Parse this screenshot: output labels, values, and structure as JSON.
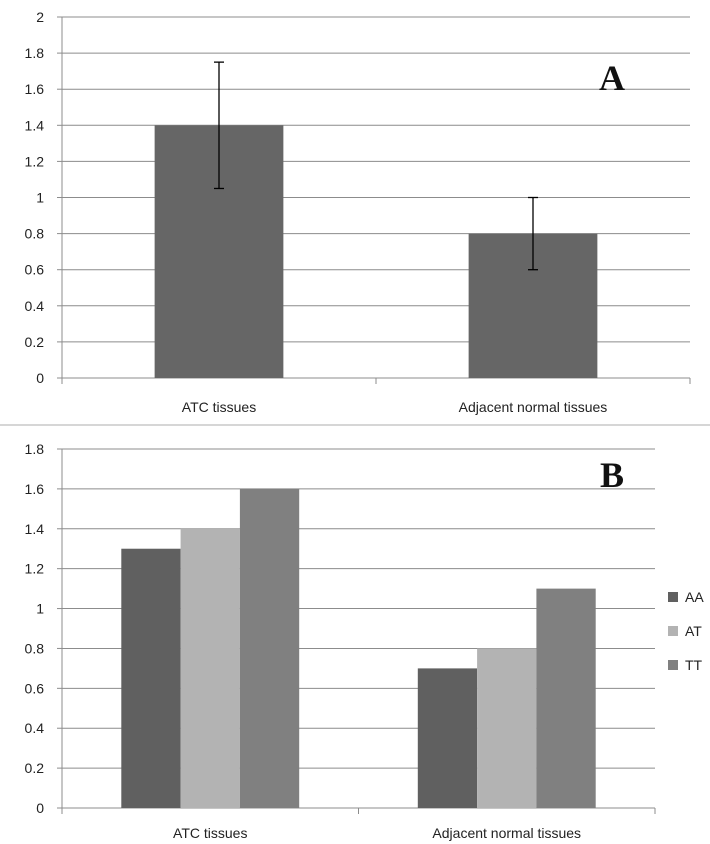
{
  "chart_data": [
    {
      "type": "bar",
      "panel_label": "A",
      "categories": [
        "ATC tissues",
        "Adjacent normal tissues"
      ],
      "values": [
        1.4,
        0.8
      ],
      "error_low": [
        1.05,
        0.6
      ],
      "error_high": [
        1.75,
        1.0
      ],
      "ylim": [
        0,
        2
      ],
      "ytick_step": 0.2,
      "yticks": [
        "0",
        "0.2",
        "0.4",
        "0.6",
        "0.8",
        "1",
        "1.2",
        "1.4",
        "1.6",
        "1.8",
        "2"
      ],
      "grid": true,
      "bar_color": "#666666"
    },
    {
      "type": "bar",
      "panel_label": "B",
      "categories": [
        "ATC tissues",
        "Adjacent normal tissues"
      ],
      "series": [
        {
          "name": "AA",
          "values": [
            1.3,
            0.7
          ],
          "color": "#606060"
        },
        {
          "name": "AT",
          "values": [
            1.4,
            0.8
          ],
          "color": "#b3b3b3"
        },
        {
          "name": "TT",
          "values": [
            1.6,
            1.1
          ],
          "color": "#808080"
        }
      ],
      "ylim": [
        0,
        1.8
      ],
      "ytick_step": 0.2,
      "yticks": [
        "0",
        "0.2",
        "0.4",
        "0.6",
        "0.8",
        "1",
        "1.2",
        "1.4",
        "1.6",
        "1.8"
      ],
      "grid": true,
      "legend_position": "right"
    }
  ]
}
